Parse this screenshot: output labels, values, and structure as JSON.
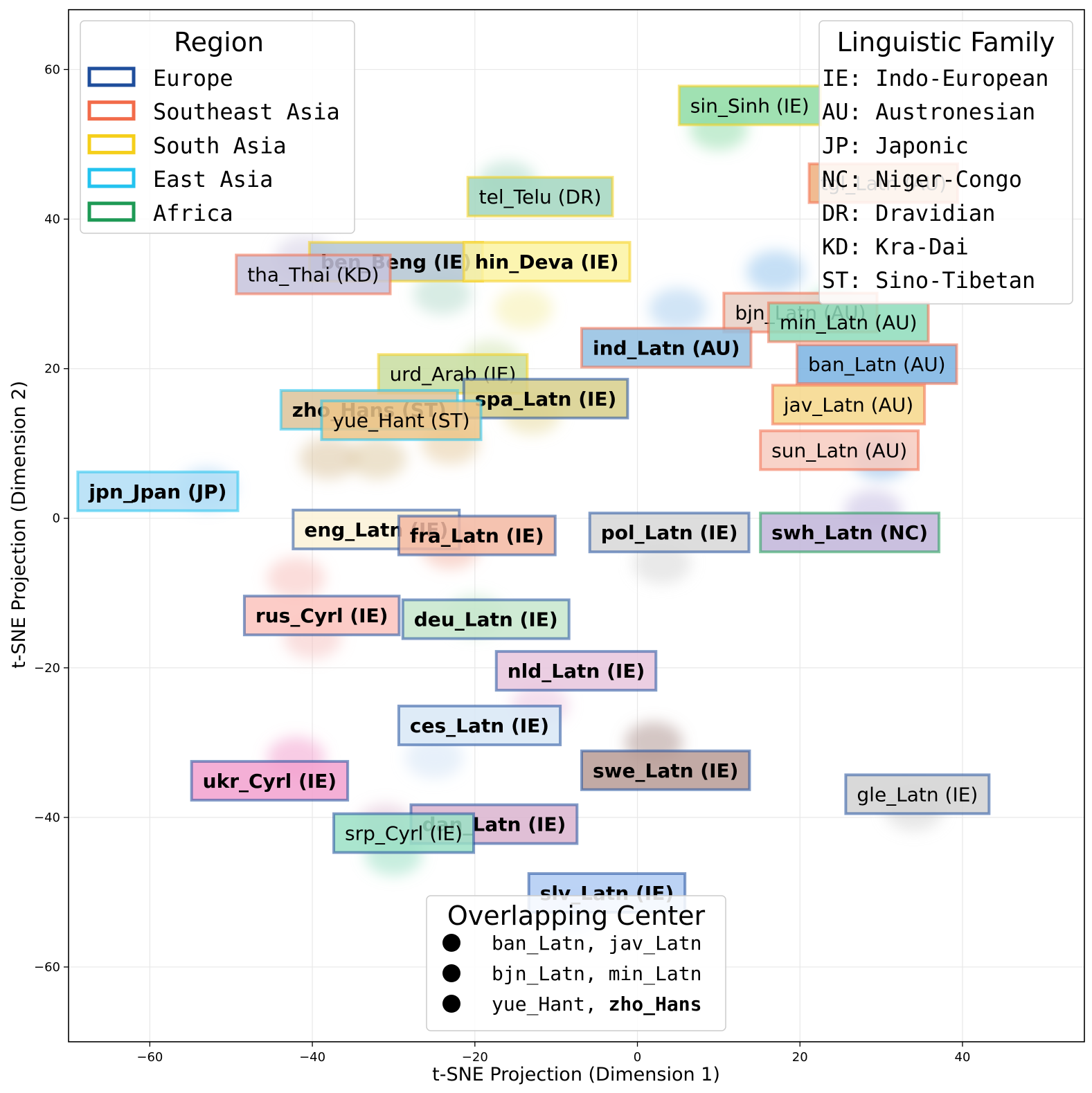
{
  "chart_data": {
    "type": "scatter",
    "title": "",
    "xlabel": "t-SNE Projection (Dimension 1)",
    "ylabel": "t-SNE Projection (Dimension 2)",
    "xlim": [
      -70,
      55
    ],
    "ylim": [
      -70,
      68
    ],
    "xticks": [
      -60,
      -40,
      -20,
      0,
      20,
      40
    ],
    "yticks": [
      -60,
      -40,
      -20,
      0,
      20,
      40,
      60
    ],
    "grid": true,
    "regions": [
      {
        "name": "Europe",
        "color": "#1f4e9c"
      },
      {
        "name": "Southeast Asia",
        "color": "#f26b4a"
      },
      {
        "name": "South Asia",
        "color": "#f5cf1b"
      },
      {
        "name": "East Asia",
        "color": "#23c3ef"
      },
      {
        "name": "Africa",
        "color": "#1e9a55"
      }
    ],
    "region_legend_title": "Region",
    "family_legend_title": "Linguistic Family",
    "families": [
      "IE: Indo-European",
      "AU: Austronesian",
      "JP: Japonic",
      "NC: Niger-Congo",
      "DR: Dravidian",
      "KD: Kra-Dai",
      "ST: Sino-Tibetan"
    ],
    "overlap_legend_title": "Overlapping Center",
    "overlaps": [
      {
        "a": "ban_Latn",
        "b": "jav_Latn",
        "bold_b": false
      },
      {
        "a": "bjn_Latn",
        "b": "min_Latn",
        "bold_b": false
      },
      {
        "a": "yue_Hant",
        "b": "zho_Hans",
        "bold_b": true
      }
    ],
    "languages": [
      {
        "label": "sin_Sinh (IE)",
        "x": 6.5,
        "y": 55.2,
        "region": "South Asia",
        "fill": "#8fdca4",
        "bold": false
      },
      {
        "label": "tgl_Latn (AU)",
        "x": 22.5,
        "y": 44.8,
        "region": "Southeast Asia",
        "fill": "#eeaf7e",
        "bold": false
      },
      {
        "label": "tel_Telu (DR)",
        "x": -19.5,
        "y": 43.0,
        "region": "South Asia",
        "fill": "#a2d6c0",
        "bold": false
      },
      {
        "label": "ben_Beng (IE)",
        "x": -39.0,
        "y": 34.3,
        "region": "South Asia",
        "fill": "#b4c5d2",
        "bold": true
      },
      {
        "label": "hin_Deva (IE)",
        "x": -20.0,
        "y": 34.3,
        "region": "South Asia",
        "fill": "#fbf3a2",
        "bold": true
      },
      {
        "label": "tha_Thai (KD)",
        "x": -48.0,
        "y": 32.6,
        "region": "Southeast Asia",
        "fill": "#c5c3dc",
        "bold": false
      },
      {
        "label": "bjn_Latn (AU)",
        "x": 12.0,
        "y": 27.5,
        "region": "Southeast Asia",
        "fill": "#e8cfc4",
        "bold": false
      },
      {
        "label": "min_Latn (AU)",
        "x": 17.5,
        "y": 26.2,
        "region": "Southeast Asia",
        "fill": "#8edcbb",
        "bold": false
      },
      {
        "label": "ind_Latn (AU)",
        "x": -5.5,
        "y": 22.8,
        "region": "Southeast Asia",
        "fill": "#93bfe2",
        "bold": true
      },
      {
        "label": "ban_Latn (AU)",
        "x": 21.0,
        "y": 20.6,
        "region": "Southeast Asia",
        "fill": "#7ab3e2",
        "bold": false
      },
      {
        "label": "urd_Arab (IE)",
        "x": -30.5,
        "y": 19.3,
        "region": "South Asia",
        "fill": "#c8dda0",
        "bold": false
      },
      {
        "label": "spa_Latn (IE)",
        "x": -20.0,
        "y": 16.0,
        "region": "Europe",
        "fill": "#d7cf8b",
        "bold": true
      },
      {
        "label": "jav_Latn (AU)",
        "x": 18.0,
        "y": 15.2,
        "region": "Southeast Asia",
        "fill": "#f6d789",
        "bold": false
      },
      {
        "label": "zho_Hans (ST)",
        "x": -42.5,
        "y": 14.5,
        "region": "East Asia",
        "fill": "#dcc39a",
        "bold": true
      },
      {
        "label": "yue_Hant (ST)",
        "x": -37.5,
        "y": 13.1,
        "region": "East Asia",
        "fill": "#ecc68a",
        "bold": false
      },
      {
        "label": "sun_Latn (AU)",
        "x": 16.5,
        "y": 9.1,
        "region": "Southeast Asia",
        "fill": "#f7cbbf",
        "bold": false
      },
      {
        "label": "jpn_Jpan (JP)",
        "x": -67.5,
        "y": 3.6,
        "region": "East Asia",
        "fill": "#b1def6",
        "bold": true
      },
      {
        "label": "eng_Latn (IE)",
        "x": -41.0,
        "y": -1.5,
        "region": "Europe",
        "fill": "#fbf2d7",
        "bold": true
      },
      {
        "label": "fra_Latn (IE)",
        "x": -28.0,
        "y": -2.3,
        "region": "Europe",
        "fill": "#f3b8a2",
        "bold": true
      },
      {
        "label": "pol_Latn (IE)",
        "x": -4.5,
        "y": -1.9,
        "region": "Europe",
        "fill": "#d7d7d7",
        "bold": true
      },
      {
        "label": "swh_Latn (NC)",
        "x": 16.5,
        "y": -1.9,
        "region": "Africa",
        "fill": "#c1b5d9",
        "bold": true
      },
      {
        "label": "rus_Cyrl (IE)",
        "x": -47.0,
        "y": -13.0,
        "region": "Europe",
        "fill": "#fbc3bd",
        "bold": true
      },
      {
        "label": "deu_Latn (IE)",
        "x": -27.5,
        "y": -13.5,
        "region": "Europe",
        "fill": "#c7e6cd",
        "bold": true
      },
      {
        "label": "nld_Latn (IE)",
        "x": -16.0,
        "y": -20.4,
        "region": "Europe",
        "fill": "#e7c6dd",
        "bold": true
      },
      {
        "label": "ces_Latn (IE)",
        "x": -28.0,
        "y": -27.7,
        "region": "Europe",
        "fill": "#d8e7f6",
        "bold": true
      },
      {
        "label": "swe_Latn (IE)",
        "x": -5.5,
        "y": -33.7,
        "region": "Europe",
        "fill": "#b79b95",
        "bold": true
      },
      {
        "label": "ukr_Cyrl (IE)",
        "x": -53.5,
        "y": -35.1,
        "region": "Europe",
        "fill": "#f2a1cf",
        "bold": true
      },
      {
        "label": "gle_Latn (IE)",
        "x": 27.0,
        "y": -36.9,
        "region": "Europe",
        "fill": "#d2d2d2",
        "bold": false
      },
      {
        "label": "dan_Latn (IE)",
        "x": -26.5,
        "y": -40.9,
        "region": "Europe",
        "fill": "#dab4cf",
        "bold": true
      },
      {
        "label": "srp_Cyrl (IE)",
        "x": -36.0,
        "y": -42.1,
        "region": "Europe",
        "fill": "#9be0c6",
        "bold": false
      },
      {
        "label": "slv_Latn (IE)",
        "x": -12.0,
        "y": -50.1,
        "region": "Europe",
        "fill": "#b0cbf3",
        "bold": true
      }
    ],
    "clusters": [
      {
        "x": 10,
        "y": 52,
        "color": "#7fd79b"
      },
      {
        "x": -16,
        "y": 45,
        "color": "#9fd4c1"
      },
      {
        "x": -41,
        "y": 35,
        "color": "#c9c4dd"
      },
      {
        "x": -24,
        "y": 30,
        "color": "#a8d4c4"
      },
      {
        "x": -14,
        "y": 28,
        "color": "#f3ea9a"
      },
      {
        "x": 5,
        "y": 28,
        "color": "#9ac6ec"
      },
      {
        "x": 24,
        "y": 28,
        "color": "#7fd7b6"
      },
      {
        "x": -18,
        "y": 21,
        "color": "#c7dda1"
      },
      {
        "x": -13,
        "y": 14,
        "color": "#e3d38b"
      },
      {
        "x": -32,
        "y": 8,
        "color": "#d7be90"
      },
      {
        "x": -23,
        "y": 10,
        "color": "#dfc28d"
      },
      {
        "x": -38,
        "y": 8,
        "color": "#d2b98b"
      },
      {
        "x": 30,
        "y": 8,
        "color": "#6fa7df"
      },
      {
        "x": -53,
        "y": 4,
        "color": "#9ccdf2"
      },
      {
        "x": 3,
        "y": -6,
        "color": "#cfcfcf"
      },
      {
        "x": -23,
        "y": -4,
        "color": "#f2a996"
      },
      {
        "x": -42,
        "y": -8,
        "color": "#f7b4b0"
      },
      {
        "x": 29,
        "y": 1,
        "color": "#b9aedb"
      },
      {
        "x": -20,
        "y": -13,
        "color": "#b9e2c2"
      },
      {
        "x": -40,
        "y": -16,
        "color": "#f3b8b6"
      },
      {
        "x": -12,
        "y": -25,
        "color": "#e7b9d9"
      },
      {
        "x": -25,
        "y": -32,
        "color": "#c9ddf4"
      },
      {
        "x": 2,
        "y": -30,
        "color": "#9f817d"
      },
      {
        "x": -42,
        "y": -32,
        "color": "#ef8fc5"
      },
      {
        "x": 34,
        "y": -39,
        "color": "#cacaca"
      },
      {
        "x": -31,
        "y": -41,
        "color": "#d9b1cc"
      },
      {
        "x": -30,
        "y": -45,
        "color": "#84d9b8"
      },
      {
        "x": -8,
        "y": -53,
        "color": "#a9c5f0"
      },
      {
        "x": 17,
        "y": 33,
        "color": "#7fb9e8"
      }
    ]
  }
}
